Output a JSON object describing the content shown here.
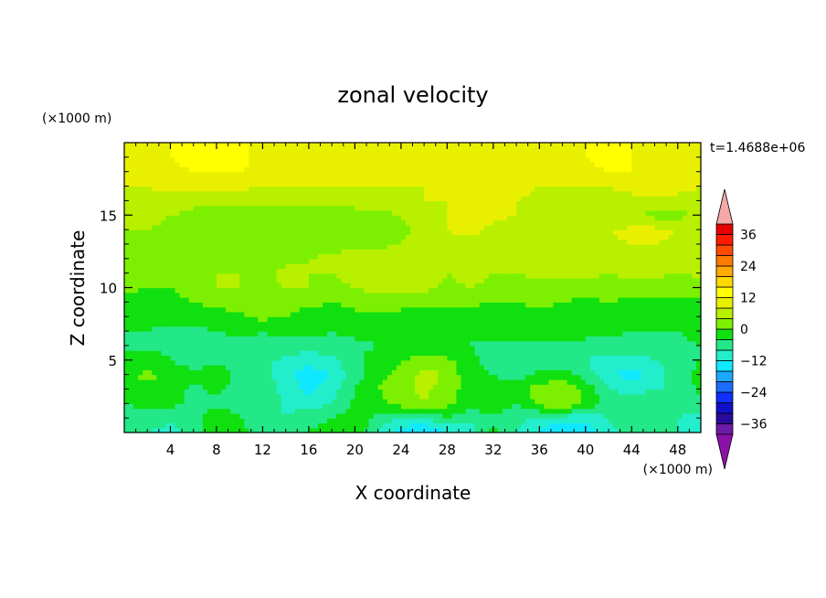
{
  "chart_data": {
    "type": "heatmap",
    "title": "zonal velocity",
    "xlabel": "X coordinate",
    "ylabel": "Z coordinate",
    "x_unit": "(×1000 m)",
    "y_unit": "(×1000 m)",
    "time_label": "t=1.4688e+06",
    "xlim": [
      0,
      50
    ],
    "ylim": [
      0,
      20
    ],
    "x_ticks": [
      4,
      8,
      12,
      16,
      20,
      24,
      28,
      32,
      36,
      40,
      44,
      48
    ],
    "y_ticks": [
      5,
      10,
      15
    ],
    "colorbar": {
      "levels": [
        -40,
        -36,
        -32,
        -28,
        -24,
        -20,
        -16,
        -12,
        -8,
        -4,
        0,
        4,
        8,
        12,
        16,
        20,
        24,
        28,
        32,
        36,
        40
      ],
      "labels": [
        36,
        24,
        12,
        0,
        -12,
        -24,
        -36
      ],
      "colors": [
        "#6e1aa8",
        "#2a0a9a",
        "#1010c8",
        "#1030ff",
        "#1c6cff",
        "#1ca8ff",
        "#10e8ff",
        "#22eecc",
        "#22e888",
        "#10e010",
        "#7cf000",
        "#b8f000",
        "#e8f000",
        "#ffff00",
        "#ffd800",
        "#ffaa00",
        "#ff7a00",
        "#ff4a00",
        "#ff1a00",
        "#e80000"
      ],
      "under_color": "#8b12a8",
      "over_color": "#f4a8a8"
    },
    "field": {
      "x_step_km": 2,
      "z_step_km": 1,
      "values": [
        [
          -8,
          -8,
          -10,
          -6,
          -2,
          -3,
          -6,
          -5,
          -4,
          -2,
          -1,
          -8,
          -13,
          -18,
          -12,
          -10,
          -3,
          -8,
          -13,
          -17,
          -14,
          -10,
          -5,
          -4,
          -8,
          -10
        ],
        [
          -6,
          -5,
          -7,
          -5,
          -2,
          -4,
          -5,
          -8,
          -5,
          -4,
          -2,
          -5,
          -10,
          -8,
          -4,
          -7,
          -5,
          -7,
          -9,
          -10,
          -11,
          -8,
          -5,
          -4,
          -8,
          -9
        ],
        [
          -4,
          -3,
          -3,
          -5,
          -5,
          -5,
          -4,
          -9,
          -10,
          -8,
          -3,
          -2,
          2,
          4,
          1,
          -2,
          -1,
          -4,
          1,
          4,
          -1,
          -5,
          -4,
          -4,
          -7,
          -6
        ],
        [
          -2,
          -1,
          -2,
          -5,
          -3,
          -6,
          -4,
          -10,
          -13,
          -10,
          -4,
          0,
          3,
          5,
          2,
          -2,
          -3,
          -2,
          2,
          3,
          -1,
          -8,
          -10,
          -8,
          -8,
          -3
        ],
        [
          -1,
          1,
          -1,
          -3,
          -2,
          -5,
          -6,
          -11,
          -14,
          -12,
          -6,
          -1,
          1,
          6,
          3,
          -3,
          -4,
          -6,
          -3,
          -2,
          -6,
          -11,
          -14,
          -10,
          -6,
          -2
        ],
        [
          -3,
          -2,
          -4,
          -6,
          -5,
          -5,
          -7,
          -9,
          -11,
          -9,
          -5,
          -2,
          0,
          2,
          1,
          -3,
          -6,
          -6,
          -6,
          -7,
          -8,
          -10,
          -10,
          -8,
          -7,
          -4
        ],
        [
          -5,
          -5,
          -5,
          -6,
          -6,
          -5,
          -5,
          -6,
          -6,
          -5,
          -5,
          -4,
          -4,
          -2,
          -3,
          -4,
          -5,
          -5,
          -5,
          -5,
          -5,
          -6,
          -6,
          -5,
          -5,
          -4
        ],
        [
          -4,
          -4,
          -5,
          -5,
          -4,
          -3,
          -4,
          -3,
          -3,
          -4,
          -3,
          -3,
          -3,
          -2,
          -3,
          -4,
          -3,
          -2,
          -2,
          -3,
          -3,
          -3,
          -4,
          -4,
          -4,
          -3
        ],
        [
          -3,
          -3,
          -3,
          -2,
          -2,
          -1,
          1,
          0,
          -2,
          -2,
          -1,
          -1,
          -2,
          -3,
          -2,
          -2,
          -3,
          -2,
          -1,
          -2,
          -2,
          -1,
          -2,
          -3,
          -2,
          -2
        ],
        [
          -2,
          -2,
          -2,
          0,
          1,
          2,
          3,
          2,
          1,
          0,
          1,
          3,
          2,
          1,
          2,
          1,
          0,
          0,
          1,
          0,
          -1,
          0,
          -1,
          -2,
          -1,
          -1
        ],
        [
          1,
          0,
          0,
          2,
          4,
          4,
          3,
          4,
          4,
          3,
          4,
          5,
          5,
          5,
          3,
          4,
          3,
          2,
          3,
          2,
          3,
          2,
          3,
          2,
          1,
          2
        ],
        [
          2,
          2,
          3,
          4,
          4,
          4,
          3,
          5,
          4,
          4,
          5,
          6,
          6,
          6,
          4,
          5,
          4,
          4,
          5,
          5,
          5,
          4,
          5,
          5,
          4,
          5
        ],
        [
          3,
          3,
          4,
          3,
          2,
          2,
          3,
          3,
          4,
          5,
          6,
          6,
          7,
          6,
          5,
          4,
          4,
          5,
          6,
          6,
          7,
          6,
          6,
          7,
          6,
          6
        ],
        [
          3,
          3,
          2,
          2,
          1,
          1,
          2,
          2,
          1,
          2,
          3,
          3,
          4,
          6,
          7,
          7,
          5,
          5,
          6,
          6,
          7,
          7,
          8,
          8,
          7,
          7
        ],
        [
          4,
          4,
          3,
          2,
          1,
          1,
          1,
          1,
          1,
          1,
          2,
          2,
          3,
          5,
          8,
          9,
          7,
          6,
          6,
          7,
          8,
          8,
          9,
          9,
          8,
          8
        ],
        [
          5,
          5,
          4,
          3,
          2,
          2,
          1,
          2,
          2,
          2,
          3,
          3,
          4,
          6,
          8,
          9,
          9,
          8,
          7,
          6,
          6,
          5,
          4,
          3,
          3,
          4
        ],
        [
          7,
          7,
          6,
          5,
          5,
          5,
          5,
          5,
          5,
          5,
          5,
          6,
          7,
          8,
          8,
          9,
          9,
          8,
          7,
          6,
          6,
          7,
          7,
          7,
          7,
          7
        ],
        [
          8,
          8,
          9,
          9,
          9,
          9,
          8,
          8,
          8,
          8,
          8,
          8,
          8,
          8,
          9,
          9,
          9,
          9,
          8,
          8,
          8,
          8,
          9,
          9,
          9,
          8
        ],
        [
          9,
          9,
          11,
          12,
          12,
          12,
          11,
          10,
          10,
          9,
          9,
          9,
          9,
          10,
          10,
          10,
          9,
          9,
          9,
          10,
          11,
          12,
          12,
          10,
          9,
          9
        ],
        [
          9,
          9,
          12,
          13,
          13,
          13,
          11,
          10,
          10,
          10,
          9,
          9,
          9,
          10,
          10,
          10,
          9,
          9,
          9,
          11,
          12,
          13,
          12,
          10,
          9,
          9
        ]
      ]
    }
  }
}
